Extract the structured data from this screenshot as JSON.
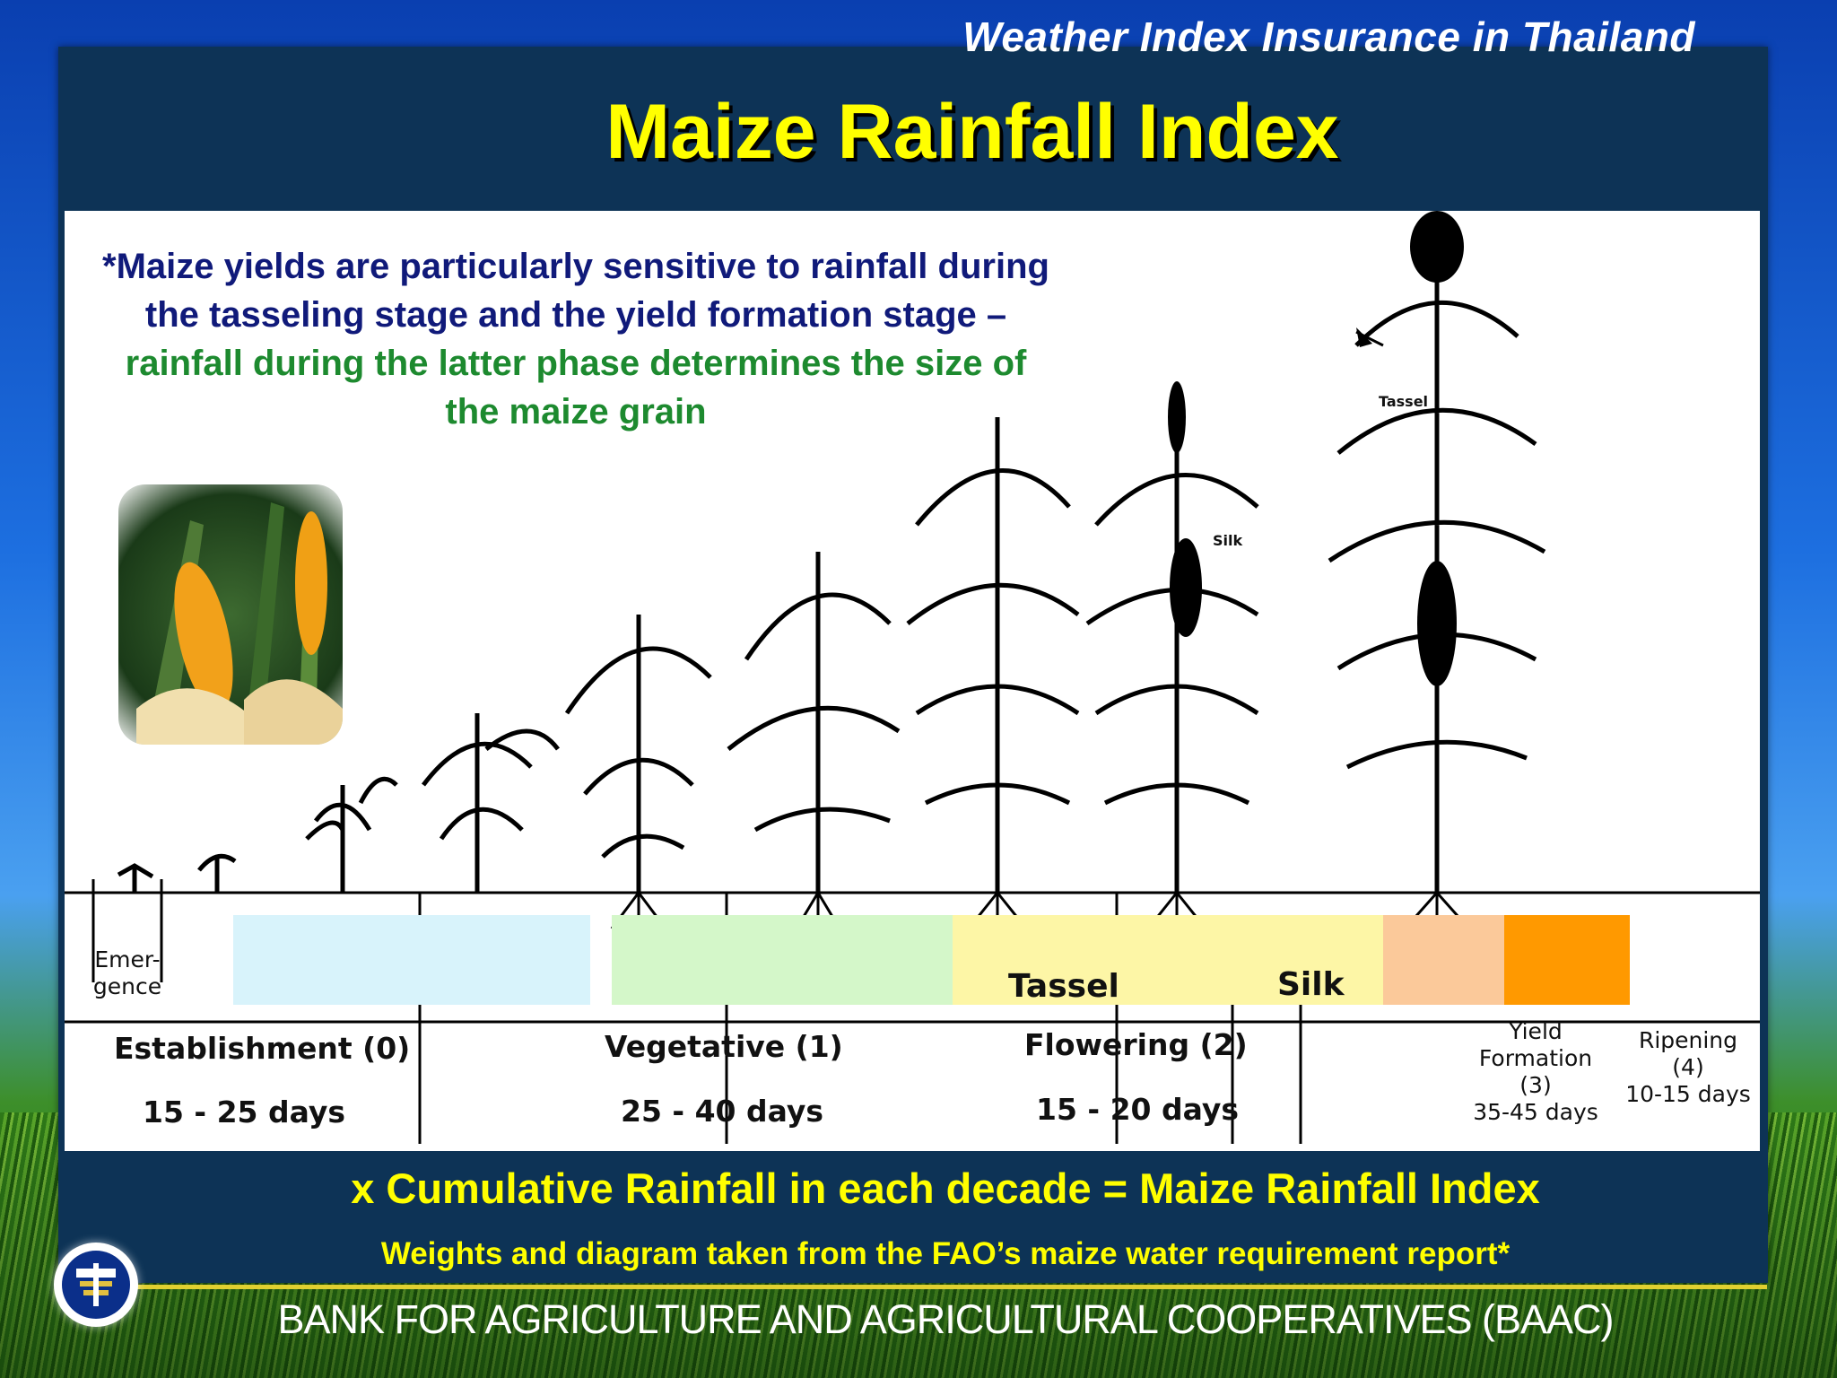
{
  "header": {
    "subtitle": "Weather Index Insurance in Thailand",
    "title": "Maize Rainfall Index"
  },
  "note": {
    "part1": "*Maize yields are particularly sensitive to rainfall during the tasseling stage and the yield formation stage – ",
    "part2": "rainfall during the latter phase determines the size of the maize grain"
  },
  "diagram": {
    "plant_labels": {
      "tassel": "Tassel",
      "silk": "Silk"
    },
    "emergence": {
      "line1": "Emer-",
      "line2": "gence"
    },
    "band_labels": {
      "tassel": "Tassel",
      "silk": "Silk"
    },
    "stages": [
      {
        "name": "Establishment (0)",
        "duration": "15 - 25 days"
      },
      {
        "name": "Vegetative (1)",
        "duration": "25 - 40 days"
      },
      {
        "name": "Flowering (2)",
        "duration": "15 - 20 days"
      },
      {
        "name_line1": "Yield",
        "name_line2": "Formation",
        "name_line3": "(3)",
        "duration": "35-45 days"
      },
      {
        "name_line1": "Ripening",
        "name_line2": "(4)",
        "duration": "10-15 days"
      }
    ],
    "band_colors": {
      "establishment": "#d8f3fb",
      "vegetative": "#d4f7c9",
      "flowering": "#fdf6a6",
      "silk_light": "#ffe8a0",
      "silk_orange": "#fbc99a",
      "yield": "#ff9900"
    }
  },
  "footer": {
    "formula": "x Cumulative Rainfall in each decade = Maize Rainfall Index",
    "source": "Weights and diagram taken from the FAO’s maize water requirement report*",
    "bank": "BANK FOR AGRICULTURE AND AGRICULTURAL COOPERATIVES (BAAC)"
  }
}
